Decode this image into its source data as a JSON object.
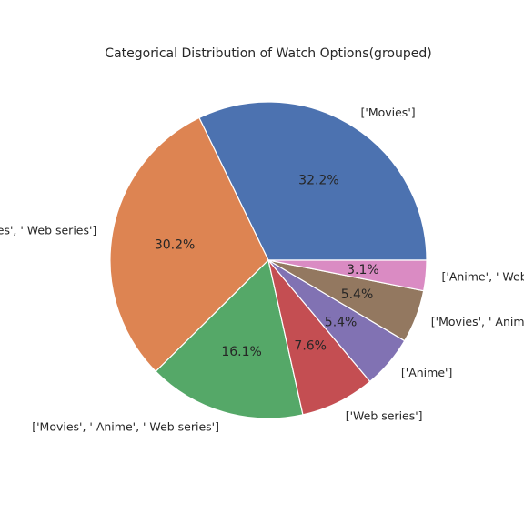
{
  "chart_data": {
    "type": "pie",
    "title": "Categorical Distribution of Watch Options(grouped)",
    "labels": [
      "['Movies']",
      "['Movies', ' Web series']",
      "['Movies', ' Anime', ' Web series']",
      "['Web series']",
      "['Anime']",
      "['Movies', ' Anime']",
      "['Anime', ' Web series']"
    ],
    "percent_labels": [
      "32.2%",
      "30.2%",
      "16.1%",
      "7.6%",
      "5.4%",
      "5.4%",
      "3.1%"
    ],
    "values": [
      32.2,
      30.2,
      16.1,
      7.6,
      5.4,
      5.4,
      3.1
    ],
    "colors": [
      "#4c72b0",
      "#dd8452",
      "#55a868",
      "#c44e52",
      "#8172b3",
      "#937860",
      "#da8bc3"
    ],
    "start_angle_deg": 0,
    "direction": "counterclockwise",
    "legend": "none"
  }
}
